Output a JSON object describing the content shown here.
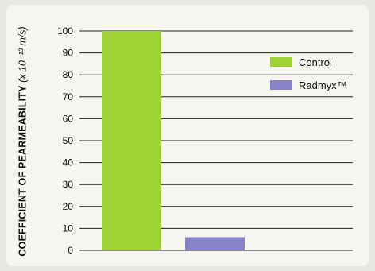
{
  "colors": {
    "control": "#9ed336",
    "radmyx": "#8782c9",
    "gridline": "#222222"
  },
  "chart_data": {
    "type": "bar",
    "categories": [
      "Control",
      "Radmyx™"
    ],
    "values": [
      100,
      6
    ],
    "ylabel": "COEFFICIENT OF PEARMEABILITY",
    "ylabel_units": "(x 10⁻¹³ m/s)",
    "ylim": [
      0,
      100
    ],
    "yticks": [
      "0",
      "10",
      "20",
      "30",
      "40",
      "50",
      "60",
      "70",
      "80",
      "90",
      "100"
    ],
    "grid": true,
    "legend": {
      "placement": "top-right",
      "items": [
        {
          "label": "Control",
          "color": "#9ed336"
        },
        {
          "label": "Radmyx™",
          "color": "#8782c9"
        }
      ]
    }
  }
}
